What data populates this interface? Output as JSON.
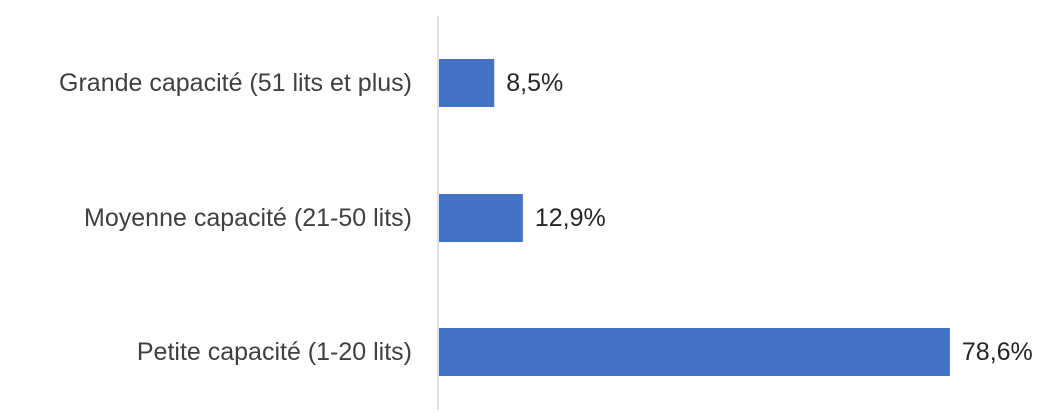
{
  "chart_data": {
    "type": "bar",
    "orientation": "horizontal",
    "categories": [
      "Grande capacité (51 lits et plus)",
      "Moyenne capacité (21-50 lits)",
      "Petite capacité (1-20 lits)"
    ],
    "values": [
      8.5,
      12.9,
      78.6
    ],
    "value_labels": [
      "8,5%",
      "12,9%",
      "78,6%"
    ],
    "unit": "%",
    "xlim": [
      0,
      80
    ],
    "grid": false,
    "legend": "none",
    "bar_color": "#4472C4",
    "axis_color": "#D9D9D9"
  }
}
